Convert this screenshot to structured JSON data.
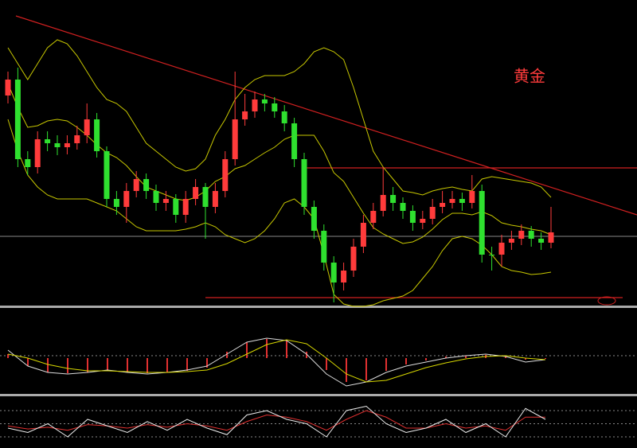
{
  "chart_data": [
    {
      "type": "candlestick",
      "title": "黄金",
      "title_color": "#ff3b3b",
      "up_color": "#ff3b3b",
      "down_color": "#2fe02f",
      "band_color": "#c8c800",
      "ylim": [
        -5,
        380
      ],
      "open": [
        260,
        280,
        180,
        170,
        205,
        200,
        195,
        200,
        210,
        230,
        190,
        130,
        120,
        140,
        155,
        140,
        125,
        130,
        110,
        130,
        145,
        120,
        140,
        180,
        230,
        240,
        255,
        250,
        240,
        225,
        180,
        120,
        90,
        50,
        25,
        40,
        70,
        100,
        115,
        135,
        125,
        115,
        100,
        105,
        120,
        125,
        130,
        125,
        140,
        60,
        60,
        75,
        80,
        90,
        80,
        75
      ],
      "high": [
        290,
        295,
        190,
        215,
        215,
        210,
        210,
        222,
        250,
        238,
        196,
        140,
        150,
        165,
        162,
        148,
        140,
        136,
        140,
        155,
        150,
        150,
        190,
        290,
        262,
        265,
        262,
        258,
        248,
        232,
        188,
        128,
        98,
        58,
        50,
        80,
        110,
        125,
        170,
        145,
        132,
        122,
        115,
        130,
        140,
        140,
        138,
        160,
        148,
        70,
        85,
        90,
        98,
        96,
        88,
        120
      ],
      "low": [
        250,
        170,
        160,
        162,
        190,
        185,
        186,
        192,
        200,
        182,
        120,
        110,
        100,
        132,
        130,
        115,
        115,
        100,
        100,
        122,
        80,
        112,
        132,
        172,
        222,
        232,
        240,
        232,
        215,
        170,
        110,
        80,
        40,
        0,
        15,
        32,
        62,
        92,
        108,
        115,
        105,
        90,
        92,
        98,
        112,
        118,
        115,
        118,
        50,
        40,
        45,
        66,
        72,
        70,
        66,
        68
      ],
      "close": [
        280,
        180,
        170,
        205,
        200,
        195,
        200,
        210,
        230,
        190,
        130,
        120,
        140,
        155,
        140,
        125,
        130,
        110,
        130,
        145,
        120,
        140,
        180,
        230,
        240,
        255,
        250,
        240,
        225,
        180,
        120,
        90,
        50,
        25,
        40,
        70,
        100,
        115,
        135,
        125,
        115,
        100,
        105,
        120,
        125,
        130,
        125,
        140,
        60,
        60,
        75,
        80,
        90,
        80,
        75,
        88
      ],
      "bands": {
        "upper": [
          320,
          300,
          280,
          300,
          320,
          330,
          325,
          310,
          290,
          270,
          255,
          250,
          240,
          220,
          200,
          190,
          180,
          170,
          165,
          168,
          180,
          210,
          230,
          255,
          270,
          280,
          285,
          285,
          285,
          290,
          300,
          315,
          320,
          315,
          305,
          270,
          230,
          190,
          170,
          155,
          140,
          138,
          135,
          140,
          143,
          145,
          142,
          140,
          155,
          158,
          156,
          154,
          152,
          150,
          145,
          132
        ],
        "middle": [
          275,
          245,
          220,
          222,
          228,
          230,
          228,
          220,
          210,
          198,
          188,
          182,
          172,
          158,
          145,
          140,
          135,
          130,
          128,
          132,
          140,
          152,
          158,
          168,
          172,
          180,
          188,
          195,
          205,
          210,
          210,
          210,
          190,
          163,
          152,
          132,
          112,
          94,
          86,
          80,
          74,
          76,
          82,
          92,
          104,
          112,
          112,
          110,
          114,
          109,
          100,
          97,
          95,
          92,
          90,
          85
        ],
        "lower": [
          230,
          190,
          160,
          145,
          135,
          130,
          130,
          130,
          130,
          125,
          120,
          115,
          105,
          95,
          90,
          90,
          90,
          90,
          92,
          95,
          100,
          95,
          85,
          80,
          75,
          80,
          90,
          105,
          125,
          130,
          120,
          105,
          60,
          10,
          -2,
          -5,
          -5,
          -3,
          2,
          5,
          8,
          15,
          30,
          45,
          65,
          80,
          83,
          80,
          72,
          60,
          45,
          40,
          38,
          35,
          36,
          38
        ]
      }
    },
    {
      "type": "macd",
      "ylim": [
        -4.5,
        5.8
      ],
      "hist_color": "#e03030",
      "dif_color": "#dddddd",
      "dea_color": "#d8d800",
      "histogram": [
        0.5,
        -1,
        -1.8,
        -1.9,
        -1.8,
        -1.6,
        -1.8,
        -1.9,
        -1.8,
        -1.6,
        -1.2,
        0.8,
        2,
        2.4,
        2.2,
        0.8,
        -1.5,
        -3,
        -2.8,
        -1.6,
        -0.8,
        -0.3,
        0.2,
        0.3,
        0.4,
        0.2,
        -0.2,
        -0.1
      ],
      "dif": [
        1,
        -1,
        -1.8,
        -2,
        -1.8,
        -1.5,
        -1.8,
        -2,
        -1.8,
        -1.5,
        -1,
        0.5,
        2,
        2.5,
        2.2,
        0.5,
        -2,
        -3.5,
        -3,
        -1.8,
        -1,
        -0.5,
        0,
        0.3,
        0.5,
        0.2,
        -0.5,
        -0.2
      ],
      "dea": [
        0.5,
        0,
        -0.8,
        -1.3,
        -1.6,
        -1.6,
        -1.7,
        -1.8,
        -1.8,
        -1.7,
        -1.5,
        -0.7,
        0.5,
        1.7,
        2.3,
        1.8,
        0,
        -2,
        -3,
        -2.8,
        -2,
        -1.2,
        -0.6,
        -0.1,
        0.2,
        0.3,
        0,
        -0.2
      ]
    },
    {
      "type": "line",
      "ylim": [
        0,
        100
      ],
      "yticks": [
        20,
        50,
        80
      ],
      "grid": true,
      "k_color": "#eeeeee",
      "d_color": "#e03030",
      "k": [
        40,
        30,
        50,
        20,
        60,
        45,
        30,
        55,
        35,
        60,
        40,
        25,
        70,
        80,
        60,
        50,
        20,
        80,
        90,
        50,
        30,
        40,
        60,
        30,
        50,
        20,
        85,
        60
      ],
      "d": [
        45,
        38,
        42,
        35,
        48,
        45,
        40,
        48,
        42,
        50,
        45,
        35,
        55,
        70,
        65,
        55,
        35,
        60,
        80,
        65,
        40,
        40,
        50,
        40,
        45,
        35,
        65,
        65
      ]
    }
  ]
}
